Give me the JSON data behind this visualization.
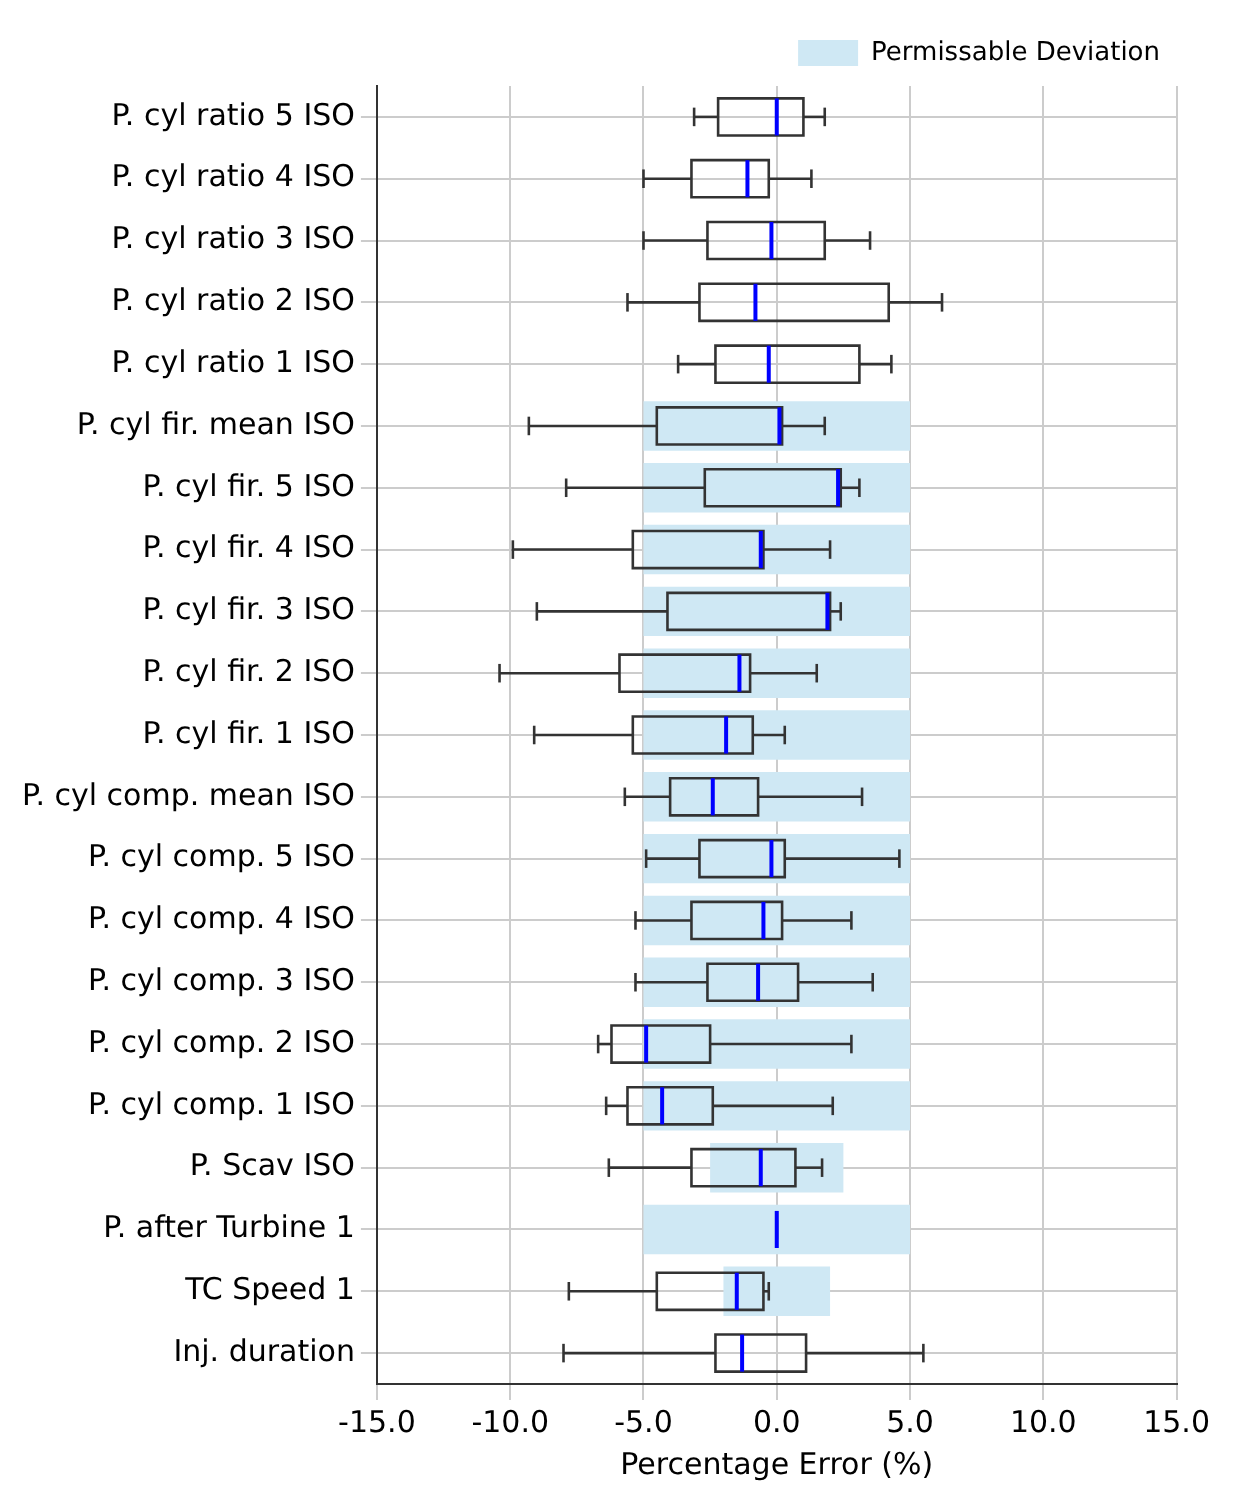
{
  "chart_data": {
    "type": "box",
    "orientation": "horizontal",
    "xlabel": "Percentage Error (%)",
    "categories": [
      "P. cyl ratio 5 ISO",
      "P. cyl ratio 4 ISO",
      "P. cyl ratio 3 ISO",
      "P. cyl ratio 2 ISO",
      "P. cyl ratio 1 ISO",
      "P. cyl fir. mean ISO",
      "P. cyl fir. 5 ISO",
      "P. cyl fir. 4 ISO",
      "P. cyl fir. 3 ISO",
      "P. cyl fir. 2 ISO",
      "P. cyl fir. 1 ISO",
      "P. cyl comp. mean ISO",
      "P. cyl comp. 5 ISO",
      "P. cyl comp. 4 ISO",
      "P. cyl comp. 3 ISO",
      "P. cyl comp. 2 ISO",
      "P. cyl comp. 1 ISO",
      "P. Scav ISO",
      "P. after Turbine 1",
      "TC Speed 1",
      "Inj. duration"
    ],
    "boxes": [
      {
        "low": -3.1,
        "q1": -2.2,
        "median": 0.0,
        "q3": 1.0,
        "high": 1.8
      },
      {
        "low": -5.0,
        "q1": -3.2,
        "median": -1.1,
        "q3": -0.3,
        "high": 1.3
      },
      {
        "low": -5.0,
        "q1": -2.6,
        "median": -0.2,
        "q3": 1.8,
        "high": 3.5
      },
      {
        "low": -5.6,
        "q1": -2.9,
        "median": -0.8,
        "q3": 4.2,
        "high": 6.2
      },
      {
        "low": -3.7,
        "q1": -2.3,
        "median": -0.3,
        "q3": 3.1,
        "high": 4.3
      },
      {
        "low": -9.3,
        "q1": -4.5,
        "median": 0.1,
        "q3": 0.2,
        "high": 1.8
      },
      {
        "low": -7.9,
        "q1": -2.7,
        "median": 2.3,
        "q3": 2.4,
        "high": 3.1
      },
      {
        "low": -9.9,
        "q1": -5.4,
        "median": -0.6,
        "q3": -0.5,
        "high": 2.0
      },
      {
        "low": -9.0,
        "q1": -4.1,
        "median": 1.9,
        "q3": 2.0,
        "high": 2.4
      },
      {
        "low": -10.4,
        "q1": -5.9,
        "median": -1.4,
        "q3": -1.0,
        "high": 1.5
      },
      {
        "low": -9.1,
        "q1": -5.4,
        "median": -1.9,
        "q3": -0.9,
        "high": 0.3
      },
      {
        "low": -5.7,
        "q1": -4.0,
        "median": -2.4,
        "q3": -0.7,
        "high": 3.2
      },
      {
        "low": -4.9,
        "q1": -2.9,
        "median": -0.2,
        "q3": 0.3,
        "high": 4.6
      },
      {
        "low": -5.3,
        "q1": -3.2,
        "median": -0.5,
        "q3": 0.2,
        "high": 2.8
      },
      {
        "low": -5.3,
        "q1": -2.6,
        "median": -0.7,
        "q3": 0.8,
        "high": 3.6
      },
      {
        "low": -6.7,
        "q1": -6.2,
        "median": -4.9,
        "q3": -2.5,
        "high": 2.8
      },
      {
        "low": -6.4,
        "q1": -5.6,
        "median": -4.3,
        "q3": -2.4,
        "high": 2.1
      },
      {
        "low": -6.3,
        "q1": -3.2,
        "median": -0.6,
        "q3": 0.7,
        "high": 1.7
      },
      {
        "low": 0,
        "q1": 0,
        "median": 0,
        "q3": 0,
        "high": 0
      },
      {
        "low": -7.8,
        "q1": -4.5,
        "median": -1.5,
        "q3": -0.5,
        "high": -0.3
      },
      {
        "low": -8.0,
        "q1": -2.3,
        "median": -1.3,
        "q3": 1.1,
        "high": 5.5
      }
    ],
    "series": [
      {
        "type": "bar",
        "name": "Permissable Deviation",
        "color": "#cfe8f4",
        "base": [
          null,
          null,
          null,
          null,
          null,
          -5,
          -5,
          -5,
          -5,
          -5,
          -5,
          -5,
          -5,
          -5,
          -5,
          -5,
          -5,
          -2.5,
          -5,
          -2,
          null
        ],
        "values": [
          null,
          null,
          null,
          null,
          null,
          10,
          10,
          10,
          10,
          10,
          10,
          10,
          10,
          10,
          10,
          10,
          10,
          5,
          10,
          4,
          null
        ]
      }
    ],
    "xlim": [
      -15,
      15
    ],
    "xticks": [
      {
        "value": -15,
        "label": "-15.0"
      },
      {
        "value": -10,
        "label": "-10.0"
      },
      {
        "value": -5,
        "label": "-5.0"
      },
      {
        "value": 0,
        "label": "0.0"
      },
      {
        "value": 5,
        "label": "5.0"
      },
      {
        "value": 10,
        "label": "10.0"
      },
      {
        "value": 15,
        "label": "15.0"
      }
    ],
    "grid": true,
    "legend": "top right"
  }
}
